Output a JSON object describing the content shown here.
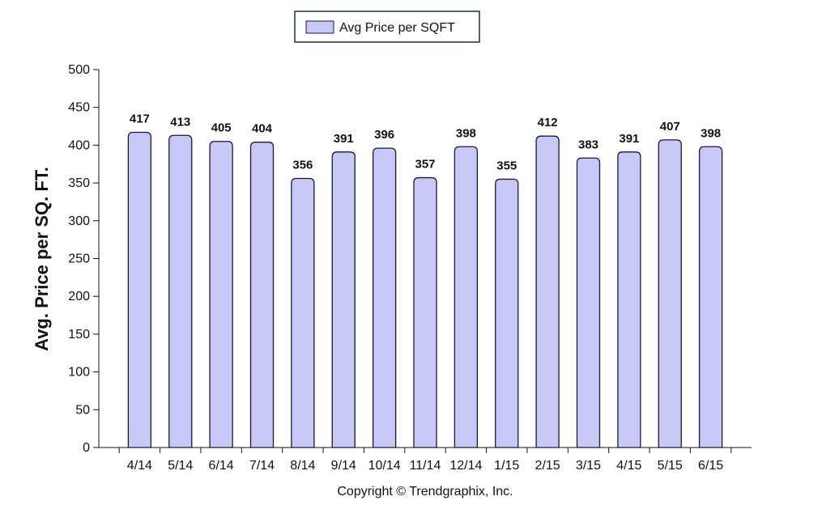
{
  "colors": {
    "bar_fill": "#c8c8f8",
    "bar_stroke": "#1a1a2a",
    "axis": "#111111",
    "legend_border": "#1a2a5a"
  },
  "legend": {
    "label": "Avg Price per SQFT"
  },
  "footer": {
    "copyright": "Copyright © Trendgraphix, Inc."
  },
  "chart_data": {
    "type": "bar",
    "categories": [
      "4/14",
      "5/14",
      "6/14",
      "7/14",
      "8/14",
      "9/14",
      "10/14",
      "11/14",
      "12/14",
      "1/15",
      "2/15",
      "3/15",
      "4/15",
      "5/15",
      "6/15"
    ],
    "series": [
      {
        "name": "Avg Price per SQFT",
        "values": [
          417,
          413,
          405,
          404,
          356,
          391,
          396,
          357,
          398,
          355,
          412,
          383,
          391,
          407,
          398
        ]
      }
    ],
    "ylabel": "Avg. Price per SQ. FT.",
    "ylim": [
      0,
      500
    ],
    "yticks": [
      0,
      50,
      100,
      150,
      200,
      250,
      300,
      350,
      400,
      450,
      500
    ],
    "legend_position": "top-center",
    "data_labels": true,
    "grid": false
  }
}
